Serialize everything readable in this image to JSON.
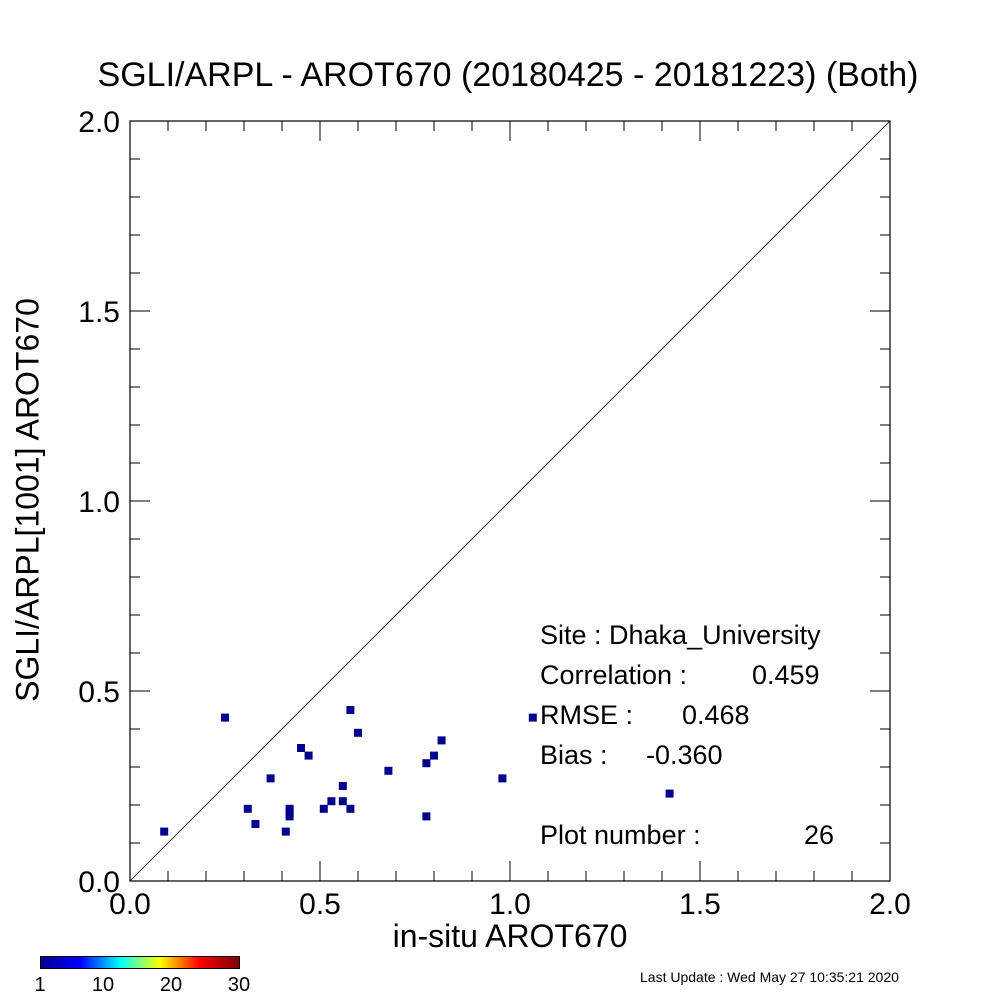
{
  "chart_data": {
    "type": "scatter",
    "title": "SGLI/ARPL - AROT670 (20180425 - 20181223) (Both)",
    "xlabel": "in-situ AROT670",
    "ylabel": "SGLI/ARPL[1001]    AROT670",
    "xlim": [
      0.0,
      2.0
    ],
    "ylim": [
      0.0,
      2.0
    ],
    "x_ticks": [
      "0.0",
      "0.5",
      "1.0",
      "1.5",
      "2.0"
    ],
    "y_ticks": [
      "0.0",
      "0.5",
      "1.0",
      "1.5",
      "2.0"
    ],
    "reference_line": "1:1",
    "grid": false,
    "point_color": "#00008b",
    "points": [
      {
        "x": 0.09,
        "y": 0.13
      },
      {
        "x": 0.25,
        "y": 0.43
      },
      {
        "x": 0.31,
        "y": 0.19
      },
      {
        "x": 0.33,
        "y": 0.15
      },
      {
        "x": 0.37,
        "y": 0.27
      },
      {
        "x": 0.41,
        "y": 0.13
      },
      {
        "x": 0.42,
        "y": 0.19
      },
      {
        "x": 0.42,
        "y": 0.18
      },
      {
        "x": 0.42,
        "y": 0.17
      },
      {
        "x": 0.45,
        "y": 0.35
      },
      {
        "x": 0.47,
        "y": 0.33
      },
      {
        "x": 0.51,
        "y": 0.19
      },
      {
        "x": 0.53,
        "y": 0.21
      },
      {
        "x": 0.56,
        "y": 0.25
      },
      {
        "x": 0.56,
        "y": 0.21
      },
      {
        "x": 0.58,
        "y": 0.19
      },
      {
        "x": 0.58,
        "y": 0.45
      },
      {
        "x": 0.6,
        "y": 0.39
      },
      {
        "x": 0.68,
        "y": 0.29
      },
      {
        "x": 0.78,
        "y": 0.31
      },
      {
        "x": 0.78,
        "y": 0.17
      },
      {
        "x": 0.8,
        "y": 0.33
      },
      {
        "x": 0.82,
        "y": 0.37
      },
      {
        "x": 0.98,
        "y": 0.27
      },
      {
        "x": 1.06,
        "y": 0.43
      },
      {
        "x": 1.42,
        "y": 0.23
      }
    ],
    "stats": {
      "site": "Site : Dhaka_University",
      "correlation_label": "Correlation :",
      "correlation": "0.459",
      "rmse_label": "RMSE :",
      "rmse": "0.468",
      "bias_label": "Bias :",
      "bias": "-0.360",
      "plot_number_label": "Plot number :",
      "plot_number": "26"
    },
    "colorbar": {
      "colors": [
        "#00008f",
        "#0000ff",
        "#00ffff",
        "#ffff00",
        "#ff0000",
        "#800000"
      ],
      "ticks": [
        "1",
        "10",
        "20",
        "30"
      ]
    }
  },
  "footer": "Last Update : Wed May 27 10:35:21 2020"
}
